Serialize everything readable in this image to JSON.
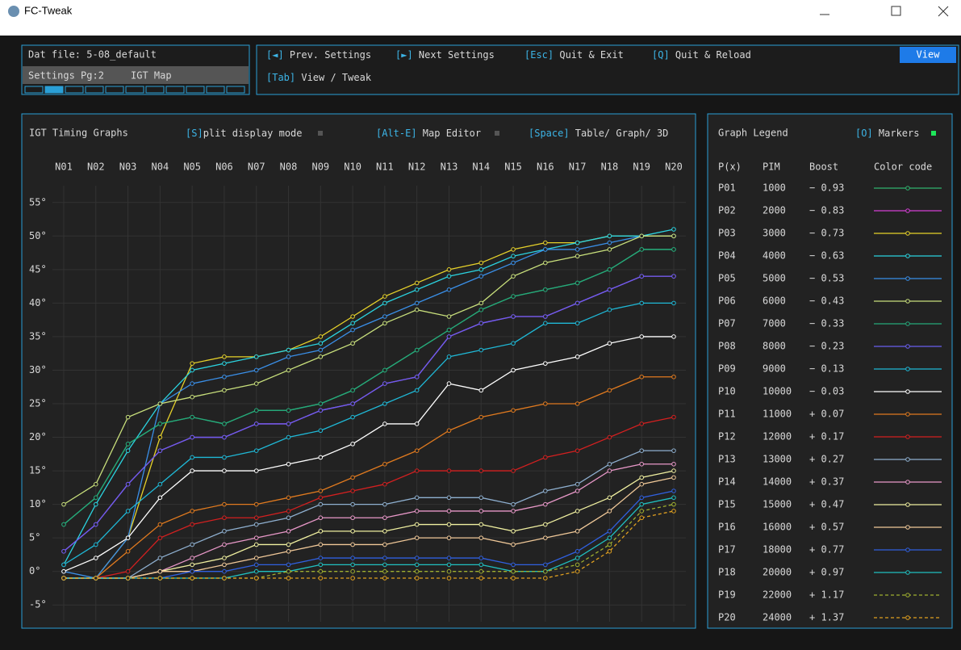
{
  "window": {
    "title": "FC-Tweak"
  },
  "file_panel": {
    "dat_file": "Dat file: 5-08_default",
    "settings_page": "Settings Pg:2",
    "map": "IGT Map"
  },
  "shortcuts": {
    "items": [
      {
        "key": "[◄]",
        "label": " Prev. Settings"
      },
      {
        "key": "[►]",
        "label": " Next Settings"
      },
      {
        "key": "[Esc]",
        "label": " Quit & Exit"
      },
      {
        "key": "[Q]",
        "label": " Quit & Reload"
      }
    ],
    "tab": {
      "key": "[Tab]",
      "label": " View / Tweak"
    },
    "button": "View"
  },
  "chart_panel": {
    "split": {
      "key": "[S]",
      "label": "plit display mode"
    },
    "editor": {
      "key": "[Alt-E]",
      "label": " Map Editor"
    },
    "view": {
      "key": "[Space]",
      "label": " Table/ Graph/ 3D"
    }
  },
  "chart_data": {
    "type": "line",
    "title": "IGT Timing Graphs",
    "categories": [
      "N01",
      "N02",
      "N03",
      "N04",
      "N05",
      "N06",
      "N07",
      "N08",
      "N09",
      "N10",
      "N11",
      "N12",
      "N13",
      "N14",
      "N15",
      "N16",
      "N17",
      "N18",
      "N19",
      "N20"
    ],
    "ylim": [
      -7.5,
      57.5
    ],
    "yticks": [
      {
        "value": -5,
        "label": "-5°"
      },
      {
        "value": 0,
        "label": "0°"
      },
      {
        "value": 5,
        "label": "5°"
      },
      {
        "value": 10,
        "label": "10°"
      },
      {
        "value": 15,
        "label": "15°"
      },
      {
        "value": 20,
        "label": "20°"
      },
      {
        "value": 25,
        "label": "25°"
      },
      {
        "value": 30,
        "label": "30°"
      },
      {
        "value": 35,
        "label": "35°"
      },
      {
        "value": 40,
        "label": "40°"
      },
      {
        "value": 45,
        "label": "45°"
      },
      {
        "value": 50,
        "label": "50°"
      },
      {
        "value": 55,
        "label": "55°"
      }
    ],
    "grid": true,
    "markers": true,
    "series": [
      {
        "name": "P01",
        "color": "#2fb36e",
        "values": [
          7,
          11,
          19,
          22,
          23,
          22,
          24,
          24,
          25,
          27,
          30,
          33,
          36,
          39,
          41,
          42,
          43,
          45,
          48,
          48
        ]
      },
      {
        "name": "P02",
        "color": "#d43fd4",
        "values": [
          3,
          7,
          13,
          18,
          20,
          20,
          22,
          22,
          24,
          25,
          28,
          29,
          35,
          37,
          38,
          38,
          40,
          42,
          44,
          44
        ]
      },
      {
        "name": "P03",
        "color": "#e6d12a",
        "values": [
          -1,
          -1,
          5,
          20,
          31,
          32,
          32,
          33,
          35,
          38,
          41,
          43,
          45,
          46,
          48,
          49,
          49,
          50,
          50,
          50
        ]
      },
      {
        "name": "P04",
        "color": "#2bd3e0",
        "values": [
          1,
          10,
          18,
          25,
          30,
          31,
          32,
          33,
          34,
          37,
          40,
          42,
          44,
          45,
          47,
          48,
          49,
          50,
          50,
          51
        ]
      },
      {
        "name": "P05",
        "color": "#3a8fe8",
        "values": [
          0,
          -1,
          5,
          25,
          28,
          29,
          30,
          32,
          33,
          36,
          38,
          40,
          42,
          44,
          46,
          48,
          48,
          49,
          50,
          50
        ]
      },
      {
        "name": "P06",
        "color": "#c9e07c",
        "values": [
          10,
          13,
          23,
          25,
          26,
          27,
          28,
          30,
          32,
          34,
          37,
          39,
          38,
          40,
          44,
          46,
          47,
          48,
          50,
          50
        ]
      },
      {
        "name": "P07",
        "color": "#25a87a",
        "values": [
          7,
          11,
          19,
          22,
          23,
          22,
          24,
          24,
          25,
          27,
          30,
          33,
          36,
          39,
          41,
          42,
          43,
          45,
          48,
          48
        ]
      },
      {
        "name": "P08",
        "color": "#6a5ef0",
        "values": [
          3,
          7,
          13,
          18,
          20,
          20,
          22,
          22,
          24,
          25,
          28,
          29,
          35,
          37,
          38,
          38,
          40,
          42,
          44,
          44
        ]
      },
      {
        "name": "P09",
        "color": "#1fb8d6",
        "values": [
          1,
          4,
          9,
          13,
          17,
          17,
          18,
          20,
          21,
          23,
          25,
          27,
          32,
          33,
          34,
          37,
          37,
          39,
          40,
          40
        ]
      },
      {
        "name": "P10",
        "color": "#ffffff",
        "values": [
          0,
          2,
          5,
          11,
          15,
          15,
          15,
          16,
          17,
          19,
          22,
          22,
          28,
          27,
          30,
          31,
          32,
          34,
          35,
          35
        ]
      },
      {
        "name": "P11",
        "color": "#e07a1f",
        "values": [
          -1,
          -1,
          3,
          7,
          9,
          10,
          10,
          11,
          12,
          14,
          16,
          18,
          21,
          23,
          24,
          25,
          25,
          27,
          29,
          29
        ]
      },
      {
        "name": "P12",
        "color": "#d42020",
        "values": [
          -1,
          -1,
          0,
          5,
          7,
          8,
          8,
          9,
          11,
          12,
          13,
          15,
          15,
          15,
          15,
          17,
          18,
          20,
          22,
          23
        ]
      },
      {
        "name": "P13",
        "color": "#8fb0d0",
        "values": [
          -1,
          -1,
          -1,
          2,
          4,
          6,
          7,
          8,
          10,
          10,
          10,
          11,
          11,
          11,
          10,
          12,
          13,
          16,
          18,
          18
        ]
      },
      {
        "name": "P14",
        "color": "#e898c8",
        "values": [
          -1,
          -1,
          -1,
          0,
          2,
          4,
          5,
          6,
          8,
          8,
          8,
          9,
          9,
          9,
          9,
          10,
          12,
          15,
          16,
          16
        ]
      },
      {
        "name": "P15",
        "color": "#f0f0a0",
        "values": [
          -1,
          -1,
          -1,
          0,
          1,
          2,
          4,
          4,
          6,
          6,
          6,
          7,
          7,
          7,
          6,
          7,
          9,
          11,
          14,
          15
        ]
      },
      {
        "name": "P16",
        "color": "#f0c898",
        "values": [
          -1,
          -1,
          -1,
          0,
          0,
          1,
          2,
          3,
          4,
          4,
          4,
          5,
          5,
          5,
          4,
          5,
          6,
          9,
          13,
          14
        ]
      },
      {
        "name": "P17",
        "color": "#3060e0",
        "values": [
          -1,
          -1,
          -1,
          -1,
          0,
          0,
          1,
          1,
          2,
          2,
          2,
          2,
          2,
          2,
          1,
          1,
          3,
          6,
          11,
          12
        ]
      },
      {
        "name": "P18",
        "color": "#20c0c0",
        "values": [
          -1,
          -1,
          -1,
          -1,
          -1,
          -1,
          0,
          0,
          1,
          1,
          1,
          1,
          1,
          1,
          0,
          0,
          2,
          5,
          10,
          11
        ]
      },
      {
        "name": "P19",
        "color": "#a0b030",
        "dashed": true,
        "values": [
          -1,
          -1,
          -1,
          -1,
          -1,
          -1,
          -1,
          0,
          0,
          0,
          0,
          0,
          0,
          0,
          0,
          0,
          1,
          4,
          9,
          10
        ]
      },
      {
        "name": "P20",
        "color": "#e0a020",
        "dashed": true,
        "values": [
          -1,
          -1,
          -1,
          -1,
          -1,
          -1,
          -1,
          -1,
          -1,
          -1,
          -1,
          -1,
          -1,
          -1,
          -1,
          -1,
          0,
          3,
          8,
          9
        ]
      }
    ]
  },
  "legend": {
    "title": "Graph Legend",
    "markers": {
      "key": "[O]",
      "label": " Markers"
    },
    "headers": [
      "P(x)",
      "PIM",
      "Boost",
      "Color code"
    ],
    "pim": [
      1000,
      2000,
      3000,
      4000,
      5000,
      6000,
      7000,
      8000,
      9000,
      10000,
      11000,
      12000,
      13000,
      14000,
      15000,
      16000,
      18000,
      20000,
      22000,
      24000
    ],
    "boost": [
      "− 0.93",
      "− 0.83",
      "− 0.73",
      "− 0.63",
      "− 0.53",
      "− 0.43",
      "− 0.33",
      "− 0.23",
      "− 0.13",
      "− 0.03",
      "+ 0.07",
      "+ 0.17",
      "+ 0.27",
      "+ 0.37",
      "+ 0.47",
      "+ 0.57",
      "+ 0.77",
      "+ 0.97",
      "+ 1.17",
      "+ 1.37"
    ]
  }
}
